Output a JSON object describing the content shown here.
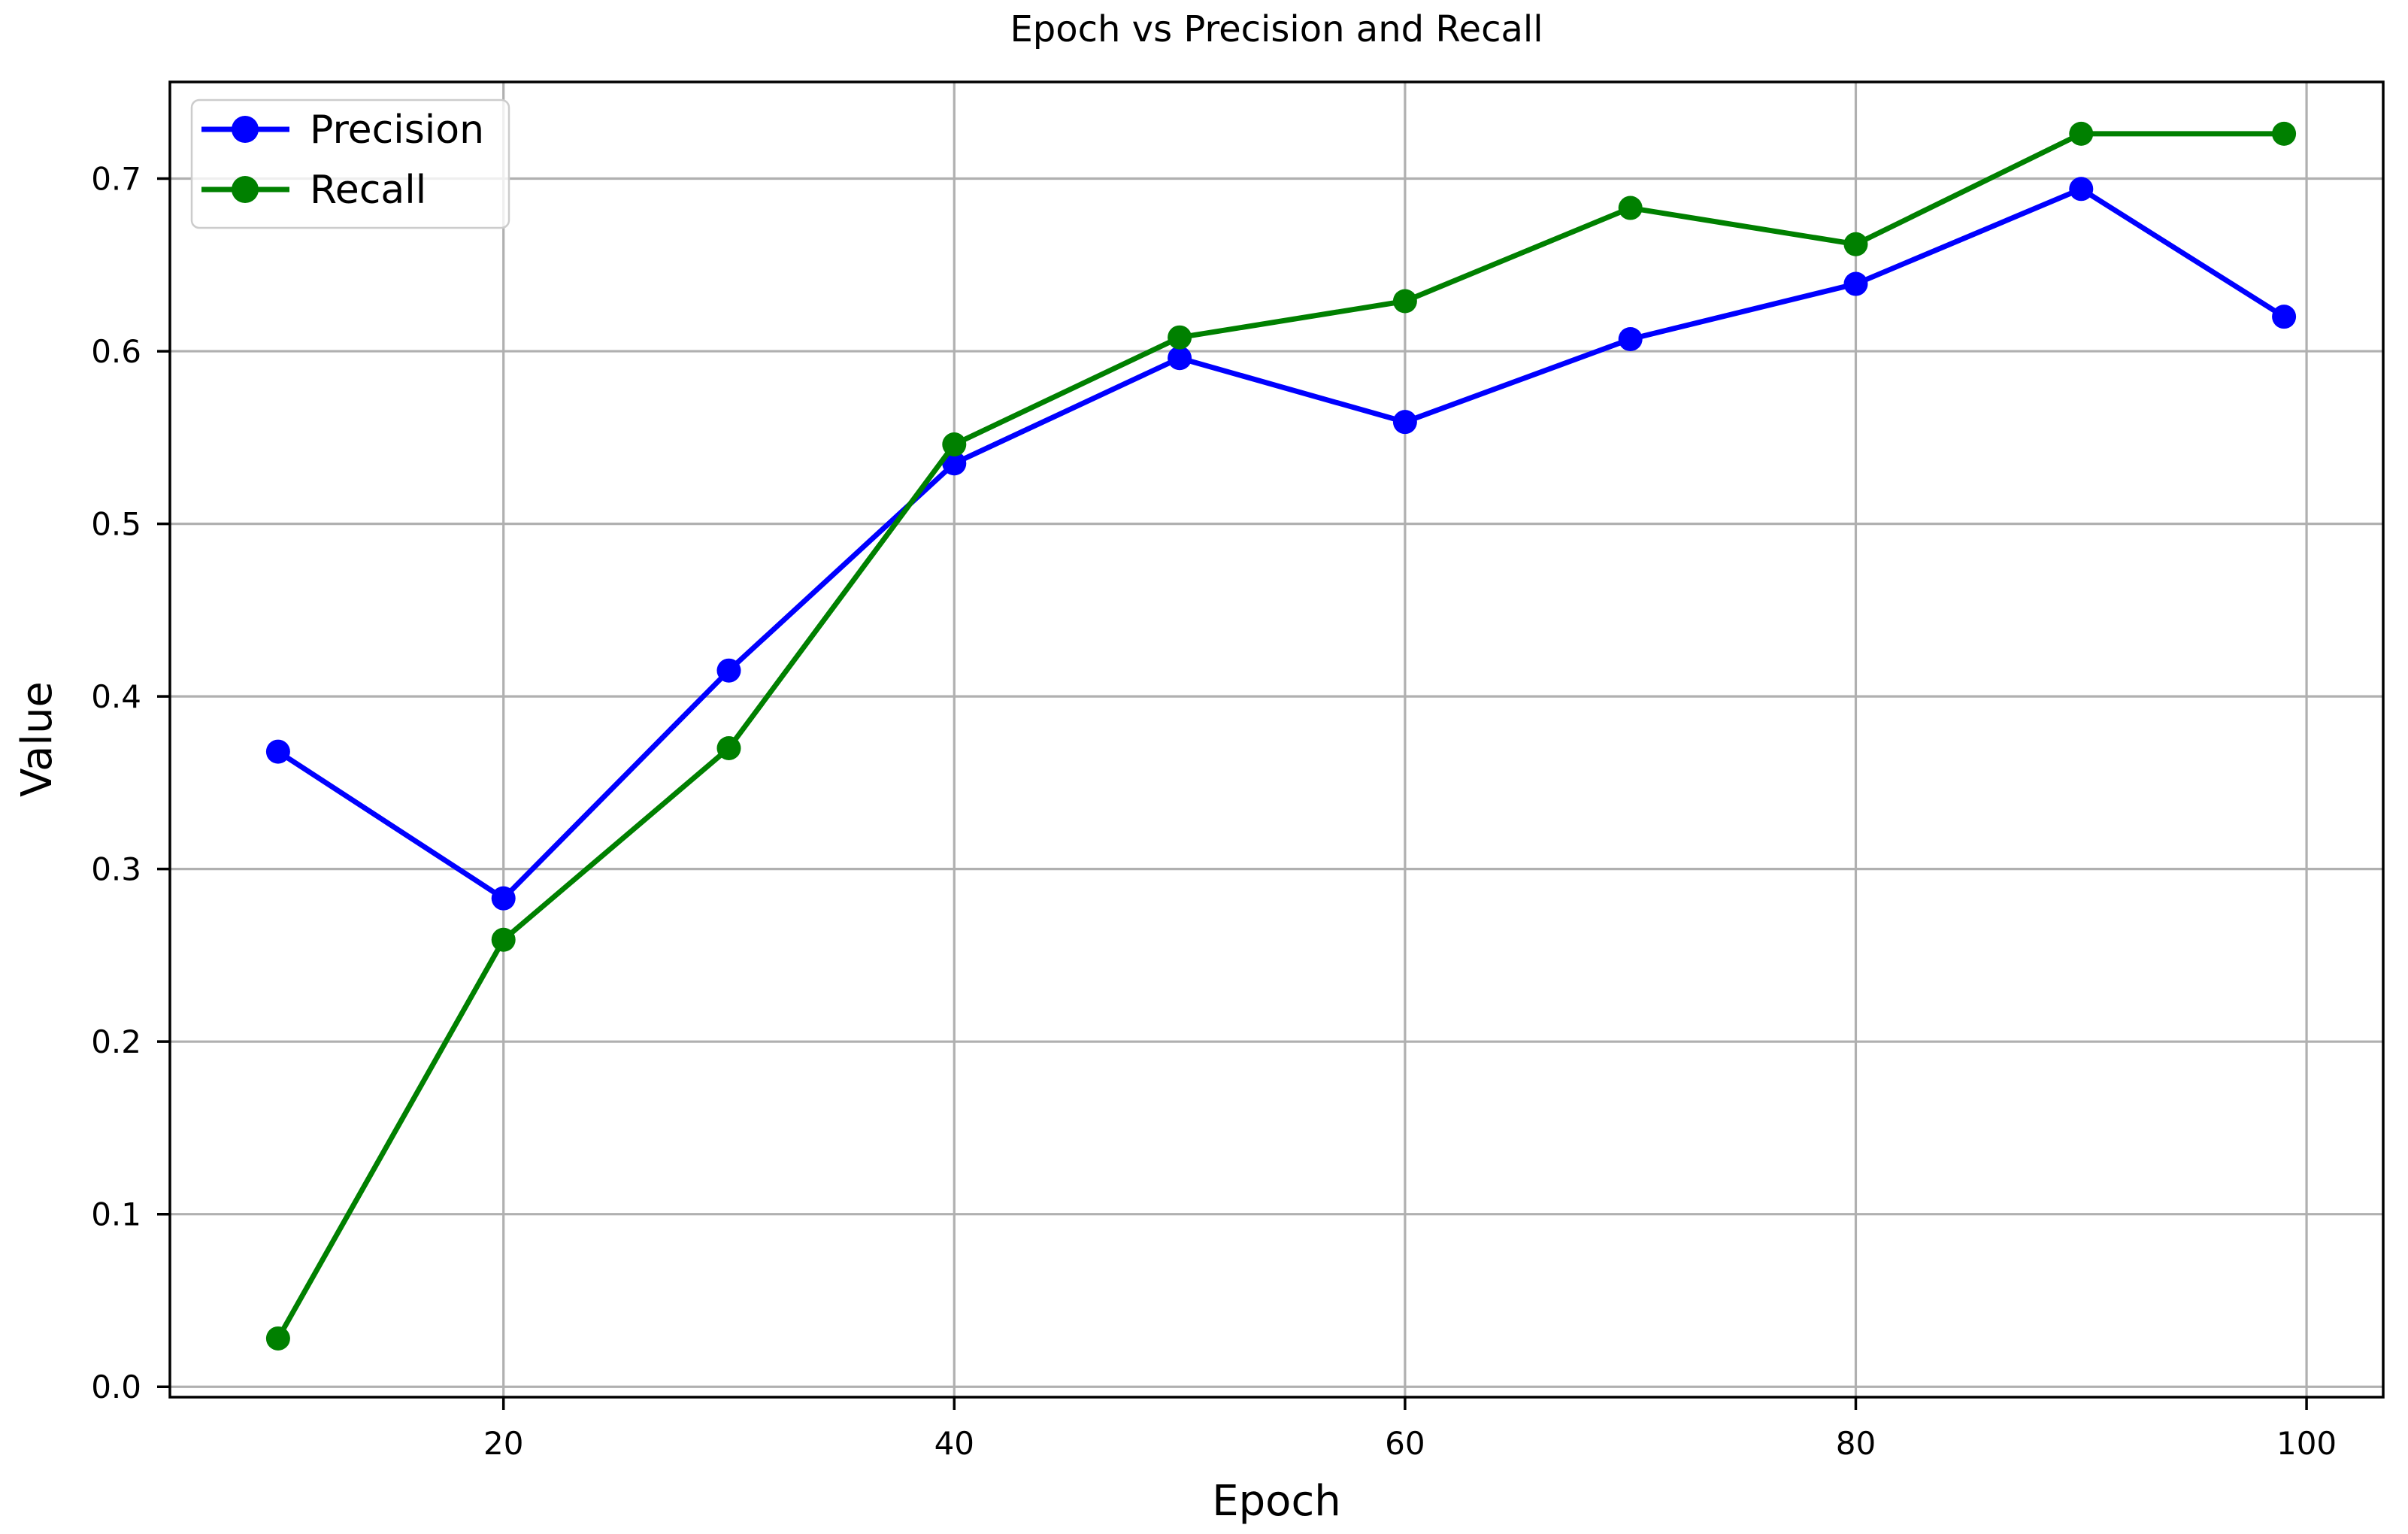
{
  "chart_data": {
    "type": "line",
    "title": "Epoch vs Precision and Recall",
    "xlabel": "Epoch",
    "ylabel": "Value",
    "x": [
      10,
      20,
      30,
      40,
      50,
      60,
      70,
      80,
      90,
      99
    ],
    "series": [
      {
        "name": "Precision",
        "color": "#0000ff",
        "values": [
          0.368,
          0.283,
          0.415,
          0.535,
          0.596,
          0.559,
          0.607,
          0.639,
          0.694,
          0.62
        ]
      },
      {
        "name": "Recall",
        "color": "#008000",
        "values": [
          0.028,
          0.259,
          0.37,
          0.546,
          0.608,
          0.629,
          0.683,
          0.662,
          0.726,
          0.726
        ]
      }
    ],
    "xticks": [
      20,
      40,
      60,
      80,
      100
    ],
    "yticks": [
      0.0,
      0.1,
      0.2,
      0.3,
      0.4,
      0.5,
      0.6,
      0.7
    ],
    "ytick_labels": [
      "0.0",
      "0.1",
      "0.2",
      "0.3",
      "0.4",
      "0.5",
      "0.6",
      "0.7"
    ],
    "xlim": [
      5.2,
      103.4
    ],
    "ylim": [
      -0.006,
      0.756
    ],
    "grid": true,
    "grid_color": "#b0b0b0",
    "spine_color": "#000000",
    "marker": "circle",
    "legend_position": "upper left"
  }
}
